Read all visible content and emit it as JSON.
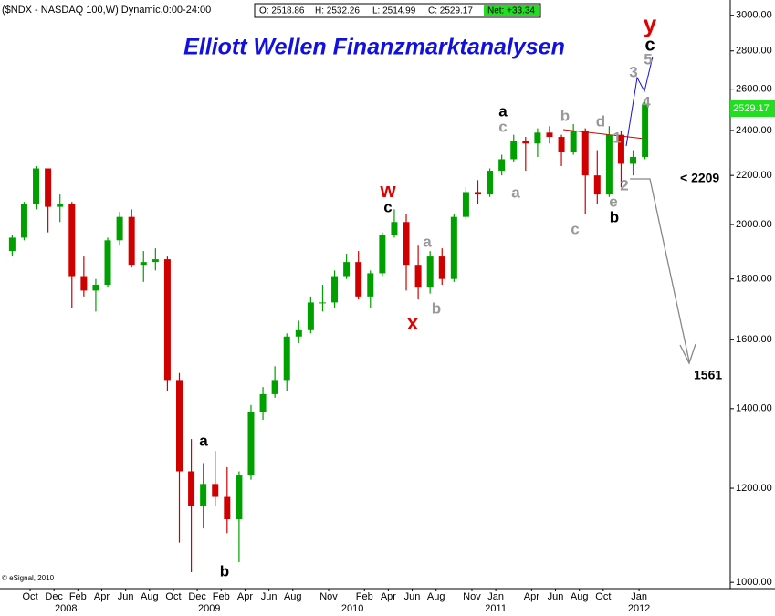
{
  "header": {
    "symbol": "($NDX - NASDAQ 100,W) Dynamic,0:00-24:00",
    "open": "O: 2518.86",
    "high": "H: 2532.26",
    "low": "L: 2514.99",
    "close": "C: 2529.17",
    "net": "Net: +33.34",
    "last_price": "2529.17"
  },
  "chart_data": {
    "type": "candlestick",
    "title": "Elliott Wellen Finanzmarktanalysen",
    "credit": "© eSignal, 2010",
    "log_scale": true,
    "up_color": "#00a000",
    "down_color": "#d00000",
    "x": [
      "2007-08",
      "2007-09",
      "2007-10",
      "2007-11",
      "2007-12",
      "2008-01",
      "2008-02",
      "2008-03",
      "2008-04",
      "2008-05",
      "2008-06",
      "2008-07",
      "2008-08",
      "2008-09",
      "2008-10",
      "2008-11",
      "2008-12",
      "2009-01",
      "2009-02",
      "2009-03",
      "2009-04",
      "2009-05",
      "2009-06",
      "2009-07",
      "2009-08",
      "2009-09",
      "2009-10",
      "2009-11",
      "2009-12",
      "2010-01",
      "2010-02",
      "2010-03",
      "2010-04",
      "2010-05",
      "2010-06",
      "2010-07",
      "2010-08",
      "2010-09",
      "2010-10",
      "2010-11",
      "2010-12",
      "2011-01",
      "2011-02",
      "2011-03",
      "2011-04",
      "2011-05",
      "2011-06",
      "2011-07",
      "2011-08",
      "2011-09",
      "2011-10",
      "2011-11",
      "2011-12",
      "2012-01"
    ],
    "open": [
      1900,
      1950,
      2080,
      2230,
      2070,
      2080,
      1810,
      1760,
      1780,
      1940,
      2030,
      1850,
      1860,
      1870,
      1480,
      1240,
      1160,
      1210,
      1180,
      1130,
      1230,
      1390,
      1440,
      1480,
      1610,
      1630,
      1720,
      1720,
      1810,
      1860,
      1740,
      1820,
      1960,
      2010,
      1850,
      1770,
      1880,
      1800,
      2030,
      2130,
      2120,
      2220,
      2270,
      2350,
      2340,
      2390,
      2370,
      2300,
      2400,
      2200,
      2120,
      2380,
      2250,
      2280
    ],
    "high": [
      1960,
      2090,
      2240,
      2230,
      2120,
      2090,
      1880,
      1800,
      1950,
      2050,
      2060,
      1900,
      1910,
      1880,
      1500,
      1320,
      1260,
      1290,
      1250,
      1240,
      1410,
      1460,
      1520,
      1620,
      1660,
      1740,
      1780,
      1830,
      1890,
      1900,
      1830,
      1970,
      2060,
      2040,
      1920,
      1900,
      1910,
      2040,
      2150,
      2180,
      2230,
      2290,
      2380,
      2370,
      2410,
      2420,
      2380,
      2430,
      2410,
      2310,
      2420,
      2400,
      2310,
      2540
    ],
    "low": [
      1880,
      1940,
      2060,
      1970,
      2010,
      1700,
      1740,
      1690,
      1770,
      1920,
      1840,
      1790,
      1830,
      1450,
      1080,
      1020,
      1110,
      1160,
      1100,
      1040,
      1220,
      1370,
      1430,
      1450,
      1590,
      1620,
      1690,
      1700,
      1800,
      1730,
      1700,
      1810,
      1950,
      1760,
      1730,
      1750,
      1780,
      1790,
      2020,
      2080,
      2110,
      2200,
      2260,
      2220,
      2280,
      2340,
      2240,
      2290,
      2040,
      2080,
      2110,
      2150,
      2200,
      2270
    ],
    "close": [
      1950,
      2080,
      2230,
      2070,
      2080,
      1810,
      1760,
      1780,
      1940,
      2030,
      1850,
      1860,
      1870,
      1480,
      1240,
      1160,
      1210,
      1180,
      1130,
      1230,
      1390,
      1440,
      1480,
      1610,
      1630,
      1720,
      1720,
      1810,
      1860,
      1740,
      1820,
      1960,
      2010,
      1850,
      1770,
      1880,
      1800,
      2030,
      2130,
      2120,
      2220,
      2270,
      2350,
      2340,
      2390,
      2370,
      2300,
      2400,
      2200,
      2120,
      2380,
      2250,
      2280,
      2525
    ],
    "ylim": [
      988,
      3090
    ],
    "yticks": [
      {
        "value": 1000,
        "label": "1000.00"
      },
      {
        "value": 1200,
        "label": "1200.00"
      },
      {
        "value": 1400,
        "label": "1400.00"
      },
      {
        "value": 1600,
        "label": "1600.00"
      },
      {
        "value": 1800,
        "label": "1800.00"
      },
      {
        "value": 2000,
        "label": "2000.00"
      },
      {
        "value": 2200,
        "label": "2200.00"
      },
      {
        "value": 2400,
        "label": "2400.00"
      },
      {
        "value": 2600,
        "label": "2600.00"
      },
      {
        "value": 2800,
        "label": "2800.00"
      },
      {
        "value": 3000,
        "label": "3000.00"
      }
    ],
    "xticks": [
      {
        "value": "2007-10",
        "label": "Oct"
      },
      {
        "value": "2007-12",
        "label": "Dec"
      },
      {
        "value": "2008-02",
        "label": "Feb"
      },
      {
        "value": "2008-04",
        "label": "Apr"
      },
      {
        "value": "2008-06",
        "label": "Jun"
      },
      {
        "value": "2008-08",
        "label": "Aug"
      },
      {
        "value": "2008-10",
        "label": "Oct"
      },
      {
        "value": "2008-12",
        "label": "Dec"
      },
      {
        "value": "2009-02",
        "label": "Feb"
      },
      {
        "value": "2009-04",
        "label": "Apr"
      },
      {
        "value": "2009-06",
        "label": "Jun"
      },
      {
        "value": "2009-08",
        "label": "Aug"
      },
      {
        "value": "2009-11",
        "label": "Nov"
      },
      {
        "value": "2010-02",
        "label": "Feb"
      },
      {
        "value": "2010-04",
        "label": "Apr"
      },
      {
        "value": "2010-06",
        "label": "Jun"
      },
      {
        "value": "2010-08",
        "label": "Aug"
      },
      {
        "value": "2010-11",
        "label": "Nov"
      },
      {
        "value": "2011-01",
        "label": "Jan"
      },
      {
        "value": "2011-04",
        "label": "Apr"
      },
      {
        "value": "2011-06",
        "label": "Jun"
      },
      {
        "value": "2011-08",
        "label": "Aug"
      },
      {
        "value": "2011-10",
        "label": "Oct"
      },
      {
        "value": "2012-01",
        "label": "Jan"
      }
    ],
    "year_ticks": [
      {
        "value": "2008-01",
        "label": "2008"
      },
      {
        "value": "2009-01",
        "label": "2009"
      },
      {
        "value": "2010-01",
        "label": "2010"
      },
      {
        "value": "2011-01",
        "label": "2011"
      },
      {
        "value": "2012-01",
        "label": "2012"
      }
    ],
    "annotations": [
      "y",
      "c",
      "5",
      "3",
      "4",
      "a",
      "c",
      "b",
      "d",
      "1",
      "2",
      "e",
      "b",
      "c",
      "a",
      "w",
      "c",
      "x",
      "a",
      "b",
      "a",
      "b",
      "< 2209",
      "1561"
    ]
  }
}
